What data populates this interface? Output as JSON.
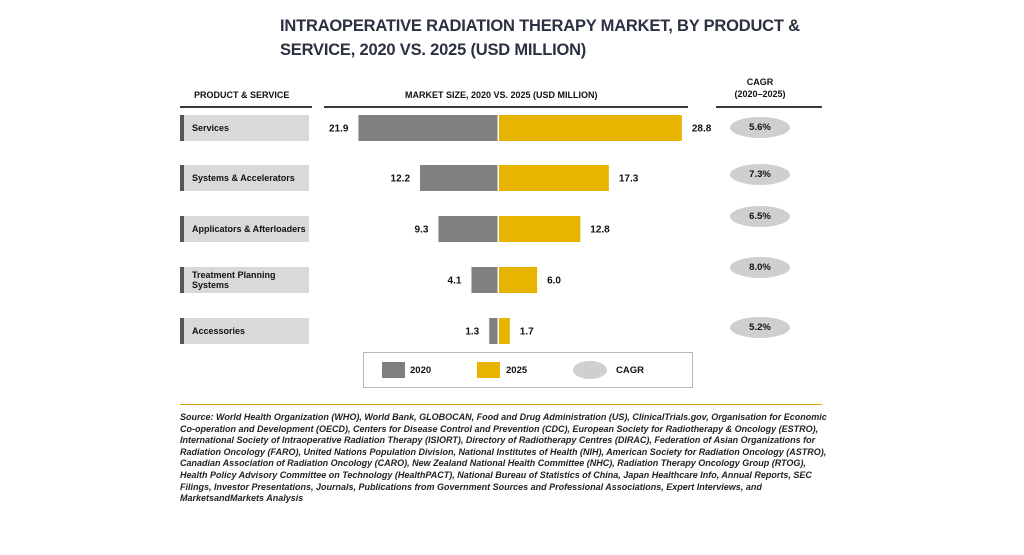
{
  "chart_data": {
    "type": "bar",
    "title": "INTRAOPERATIVE RADIATION THERAPY MARKET, BY PRODUCT & SERVICE, 2020 VS. 2025 (USD MILLION)",
    "headers": {
      "category": "PRODUCT & SERVICE",
      "market": "MARKET SIZE, 2020 VS. 2025 (USD MILLION)",
      "cagr_line1": "CAGR",
      "cagr_line2": "(2020–2025)"
    },
    "categories": [
      "Services",
      "Systems & Accelerators",
      "Applicators & Afterloaders",
      "Treatment Planning Systems",
      "Accessories"
    ],
    "series": [
      {
        "name": "2020",
        "values": [
          21.9,
          12.2,
          9.3,
          4.1,
          1.3
        ],
        "color": "#808080"
      },
      {
        "name": "2025",
        "values": [
          28.8,
          17.3,
          12.8,
          6.0,
          1.7
        ],
        "color": "#e8b400"
      }
    ],
    "value_labels_2020": [
      "21.9",
      "12.2",
      "9.3",
      "4.1",
      "1.3"
    ],
    "value_labels_2025": [
      "28.8",
      "17.3",
      "12.8",
      "6.0",
      "1.7"
    ],
    "cagr": [
      "5.6%",
      "7.3%",
      "6.5%",
      "8.0%",
      "5.2%"
    ],
    "legend": {
      "item_2020": "2020",
      "item_2025": "2025",
      "item_cagr": "CAGR"
    },
    "source": "Source: World Health Organization (WHO), World Bank, GLOBOCAN, Food and Drug Administration (US), ClinicalTrials.gov, Organisation for Economic Co-operation and Development (OECD), Centers for Disease Control and Prevention (CDC), European Society for Radiotherapy & Oncology (ESTRO), International Society of Intraoperative Radiation Therapy (ISIORT), Directory of Radiotherapy Centres (DIRAC), Federation of Asian Organizations for Radiation Oncology (FARO), United Nations Population Division, National Institutes of Health (NIH), American Society for Radiation Oncology (ASTRO), Canadian Association of Radiation Oncology (CARO), New Zealand National Health Committee (NHC), Radiation Therapy Oncology Group (RTOG), Health Policy Advisory Committee on Technology (HealthPACT), National Bureau of Statistics of China, Japan Healthcare Info, Annual Reports, SEC Filings, Investor Presentations, Journals, Publications from Government Sources and Professional Associations, Expert Interviews, and MarketsandMarkets Analysis"
  }
}
